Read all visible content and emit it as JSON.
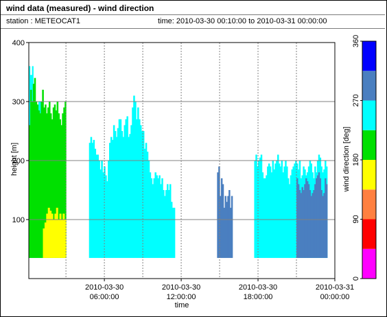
{
  "header": {
    "title": "wind data (measured) - wind direction",
    "station_label": "station : METEOCAT1",
    "time_label": "time: 2010-03-30 00:10:00 to 2010-03-31 00:00:00"
  },
  "chart_data": {
    "type": "heatmap",
    "xlabel": "time",
    "ylabel": "height [m]",
    "ylim": [
      0,
      400
    ],
    "yticks": [
      "100",
      "200",
      "300",
      "400"
    ],
    "xticks": [
      {
        "line1": "2010-03-30",
        "line2": "06:00:00",
        "hour": 6
      },
      {
        "line1": "2010-03-30",
        "line2": "12:00:00",
        "hour": 12
      },
      {
        "line1": "2010-03-30",
        "line2": "18:00:00",
        "hour": 18
      },
      {
        "line1": "2010-03-31",
        "line2": "00:00:00",
        "hour": 24
      }
    ],
    "colorbar": {
      "label": "wind direction [deg]",
      "ticks": [
        "0",
        "90",
        "180",
        "270",
        "360"
      ],
      "range": [
        0,
        360
      ],
      "bands": [
        "#ff00ff",
        "#ff0000",
        "#ff8040",
        "#ffff00",
        "#00e000",
        "#00ffff",
        "#4a7fc0",
        "#0000ff"
      ]
    },
    "grid": true,
    "colors": {
      "magenta": "#ff00ff",
      "red": "#ff0000",
      "orange": "#ff8040",
      "yellow": "#ffff00",
      "green": "#00e000",
      "cyan": "#00ffff",
      "steelblue": "#4a7fc0",
      "blue": "#0000ff"
    },
    "regions": [
      {
        "name": "night-low-direction",
        "color": "cyan",
        "start_hour": 0.1,
        "end_hour": 1.1,
        "profile": [
          360,
          345,
          345,
          360,
          330,
          300,
          300,
          280,
          280,
          300,
          300,
          270
        ]
      },
      {
        "name": "night-green",
        "color": "green",
        "start_hour": 0.1,
        "end_hour": 3.0,
        "profile": [
          260,
          320,
          300,
          330,
          340,
          300,
          295,
          285,
          280,
          300,
          320,
          290,
          295,
          280,
          290,
          300,
          280,
          270,
          290,
          295,
          285,
          300,
          280,
          270,
          260,
          280,
          290,
          300
        ]
      },
      {
        "name": "night-yellow",
        "color": "yellow",
        "start_hour": 1.2,
        "end_hour": 3.0,
        "profile": [
          85,
          95,
          110,
          120,
          115,
          110,
          100,
          110,
          120,
          100,
          110,
          100,
          110,
          100
        ]
      },
      {
        "name": "morning-block",
        "color": "cyan",
        "start_hour": 4.8,
        "end_hour": 11.5,
        "profile": [
          230,
          240,
          230,
          235,
          220,
          210,
          210,
          200,
          185,
          200,
          180,
          190,
          175,
          165,
          200,
          230,
          240,
          235,
          260,
          250,
          240,
          255,
          270,
          270,
          250,
          240,
          260,
          270,
          275,
          240,
          245,
          260,
          290,
          310,
          300,
          270,
          290,
          270,
          260,
          250,
          250,
          220,
          230,
          215,
          200,
          180,
          170,
          160,
          170,
          180,
          175,
          170,
          175,
          160,
          170,
          150,
          140,
          150,
          160,
          150,
          160,
          130,
          120,
          120
        ]
      },
      {
        "name": "evening-steel",
        "color": "steelblue",
        "start_hour": 14.8,
        "end_hour": 16.0,
        "profile": [
          180,
          190,
          140,
          170,
          160,
          120,
          140,
          130,
          140,
          150,
          120,
          140
        ]
      },
      {
        "name": "night-block",
        "color": "cyan",
        "start_hour": 17.7,
        "end_hour": 23.4,
        "profile": [
          200,
          210,
          190,
          200,
          205,
          210,
          180,
          170,
          170,
          175,
          190,
          195,
          190,
          180,
          200,
          185,
          195,
          200,
          210,
          195,
          190,
          200,
          180,
          190,
          200,
          190,
          170,
          160,
          175,
          185,
          190,
          195,
          200,
          195,
          185,
          200,
          170,
          175,
          190,
          185,
          175,
          180,
          190,
          200,
          195,
          180,
          170,
          190,
          180,
          200,
          210,
          205,
          190,
          180,
          185,
          200,
          190
        ]
      },
      {
        "name": "night-steel",
        "color": "steelblue",
        "start_hour": 21.0,
        "end_hour": 23.4,
        "profile": [
          170,
          160,
          150,
          145,
          155,
          150,
          160,
          170,
          165,
          160,
          150,
          140,
          145,
          150,
          160,
          170,
          175,
          180,
          170,
          150,
          140,
          145,
          170,
          160
        ]
      }
    ]
  }
}
